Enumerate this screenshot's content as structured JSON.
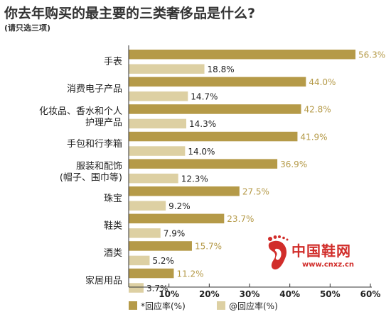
{
  "title": "你去年购买的最主要的三类奢侈品是什么?",
  "subtitle": "(请只选三项)",
  "colors": {
    "series1": "#b59a48",
    "series2": "#ddd0a3",
    "label1": "#b59a48",
    "label2": "#222222",
    "watermark": "#d12d2a"
  },
  "watermark": {
    "brand": "中国鞋网",
    "url": "www.cnxz.cn",
    "icon": "footprint-logo-icon"
  },
  "chart_data": {
    "type": "bar",
    "orientation": "horizontal",
    "categories": [
      [
        "手表"
      ],
      [
        "消费电子产品"
      ],
      [
        "化妆品、香水和个人",
        "护理产品"
      ],
      [
        "手包和行李箱"
      ],
      [
        "服装和配饰",
        "(帽子、围巾等)"
      ],
      [
        "珠宝"
      ],
      [
        "鞋类"
      ],
      [
        "酒类"
      ],
      [
        "家居用品"
      ]
    ],
    "series": [
      {
        "name": "*回应率(%)",
        "values": [
          56.3,
          44.0,
          42.8,
          41.9,
          36.9,
          27.5,
          23.7,
          15.7,
          11.2
        ],
        "labels": [
          "56.3%",
          "44.0%",
          "42.8%",
          "41.9%",
          "36.9%",
          "27.5%",
          "23.7%",
          "15.7%",
          "11.2%"
        ]
      },
      {
        "name": "@回应率(%)",
        "values": [
          18.8,
          14.7,
          14.3,
          14.0,
          12.3,
          9.2,
          7.9,
          5.2,
          3.7
        ],
        "labels": [
          "18.8%",
          "14.7%",
          "14.3%",
          "14.0%",
          "12.3%",
          "9.2%",
          "7.9%",
          "5.2%",
          "3.7%"
        ]
      }
    ],
    "xticks": [
      10,
      20,
      30,
      40,
      50,
      60
    ],
    "xtick_labels": [
      "10%",
      "20%",
      "30%",
      "40%",
      "50%",
      "60%"
    ],
    "xlim": [
      0,
      60
    ],
    "grid": false,
    "legend": "bottom-left"
  }
}
